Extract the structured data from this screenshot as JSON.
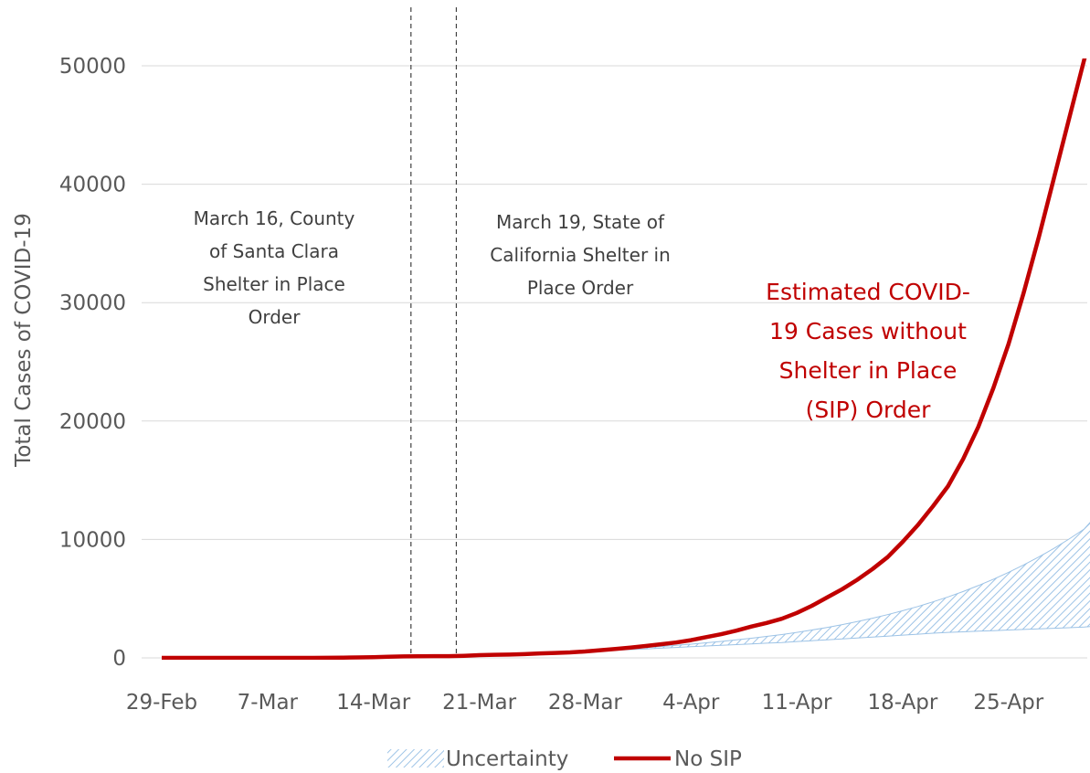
{
  "chart_data": {
    "type": "line",
    "title": "",
    "xlabel": "",
    "ylabel": "Total Cases of COVID-19",
    "x_dates": [
      "2020-02-29",
      "2020-03-01",
      "2020-03-02",
      "2020-03-03",
      "2020-03-04",
      "2020-03-05",
      "2020-03-06",
      "2020-03-07",
      "2020-03-08",
      "2020-03-09",
      "2020-03-10",
      "2020-03-11",
      "2020-03-12",
      "2020-03-13",
      "2020-03-14",
      "2020-03-15",
      "2020-03-16",
      "2020-03-17",
      "2020-03-18",
      "2020-03-19",
      "2020-03-20",
      "2020-03-21",
      "2020-03-22",
      "2020-03-23",
      "2020-03-24",
      "2020-03-25",
      "2020-03-26",
      "2020-03-27",
      "2020-03-28",
      "2020-03-29",
      "2020-03-30",
      "2020-03-31",
      "2020-04-01",
      "2020-04-02",
      "2020-04-03",
      "2020-04-04",
      "2020-04-05",
      "2020-04-06",
      "2020-04-07",
      "2020-04-08",
      "2020-04-09",
      "2020-04-10",
      "2020-04-11",
      "2020-04-12",
      "2020-04-13",
      "2020-04-14",
      "2020-04-15",
      "2020-04-16",
      "2020-04-17",
      "2020-04-18",
      "2020-04-19",
      "2020-04-20",
      "2020-04-21",
      "2020-04-22",
      "2020-04-23",
      "2020-04-24",
      "2020-04-25",
      "2020-04-26",
      "2020-04-27",
      "2020-04-28",
      "2020-04-29",
      "2020-04-30",
      "2020-05-01"
    ],
    "x_tick_labels": [
      "29-Feb",
      "7-Mar",
      "14-Mar",
      "21-Mar",
      "28-Mar",
      "4-Apr",
      "11-Apr",
      "18-Apr",
      "25-Apr"
    ],
    "x_tick_dates": [
      "2020-02-29",
      "2020-03-07",
      "2020-03-14",
      "2020-03-21",
      "2020-03-28",
      "2020-04-04",
      "2020-04-11",
      "2020-04-18",
      "2020-04-25"
    ],
    "ylim": [
      0,
      50000
    ],
    "y_ticks": [
      0,
      10000,
      20000,
      30000,
      40000,
      50000
    ],
    "grid": true,
    "legend_position": "bottom",
    "series": [
      {
        "name": "No SIP",
        "color": "#c00000",
        "values": [
          0,
          0,
          0,
          0,
          0,
          0,
          0,
          0,
          0,
          0,
          0,
          10,
          20,
          35,
          60,
          90,
          120,
          140,
          150,
          150,
          180,
          230,
          260,
          280,
          320,
          380,
          420,
          460,
          540,
          650,
          750,
          870,
          1000,
          1150,
          1300,
          1500,
          1750,
          2000,
          2300,
          2650,
          2950,
          3300,
          3800,
          4400,
          5100,
          5800,
          6600,
          7500,
          8500,
          9800,
          11200,
          12800,
          14500,
          16800,
          19500,
          22800,
          26500,
          30800,
          35500,
          40500,
          45500,
          50500,
          55000
        ]
      },
      {
        "name": "Uncertainty",
        "type": "band",
        "color": "#9dc3e6",
        "lower": [
          0,
          0,
          0,
          0,
          0,
          0,
          0,
          0,
          0,
          0,
          0,
          10,
          20,
          35,
          60,
          90,
          120,
          140,
          150,
          150,
          180,
          230,
          260,
          280,
          320,
          380,
          420,
          460,
          540,
          600,
          650,
          700,
          760,
          820,
          880,
          940,
          1000,
          1060,
          1120,
          1180,
          1240,
          1300,
          1380,
          1450,
          1520,
          1600,
          1680,
          1760,
          1840,
          1920,
          2000,
          2080,
          2150,
          2200,
          2250,
          2300,
          2350,
          2400,
          2450,
          2500,
          2550,
          2600,
          2700
        ],
        "upper": [
          0,
          0,
          0,
          0,
          0,
          0,
          0,
          0,
          0,
          0,
          0,
          10,
          20,
          35,
          60,
          90,
          120,
          140,
          150,
          150,
          180,
          230,
          260,
          280,
          320,
          380,
          420,
          460,
          540,
          620,
          700,
          780,
          870,
          960,
          1060,
          1160,
          1270,
          1390,
          1520,
          1660,
          1810,
          1970,
          2150,
          2350,
          2570,
          2810,
          3070,
          3350,
          3650,
          3980,
          4340,
          4730,
          5150,
          5600,
          6100,
          6640,
          7220,
          7850,
          8520,
          9240,
          10030,
          10880,
          12300
        ]
      }
    ],
    "annotations": [
      {
        "date": "2020-03-16",
        "style": "dashed-vertical",
        "lines": [
          "March 16, County",
          "of Santa Clara",
          "Shelter in Place",
          "Order"
        ]
      },
      {
        "date": "2020-03-19",
        "style": "dashed-vertical",
        "lines": [
          "March 19, State of",
          "California Shelter in",
          "Place Order"
        ]
      }
    ],
    "callout": {
      "color": "#c00000",
      "lines": [
        "Estimated COVID-",
        "19 Cases without",
        "Shelter in Place",
        "(SIP) Order"
      ]
    }
  }
}
